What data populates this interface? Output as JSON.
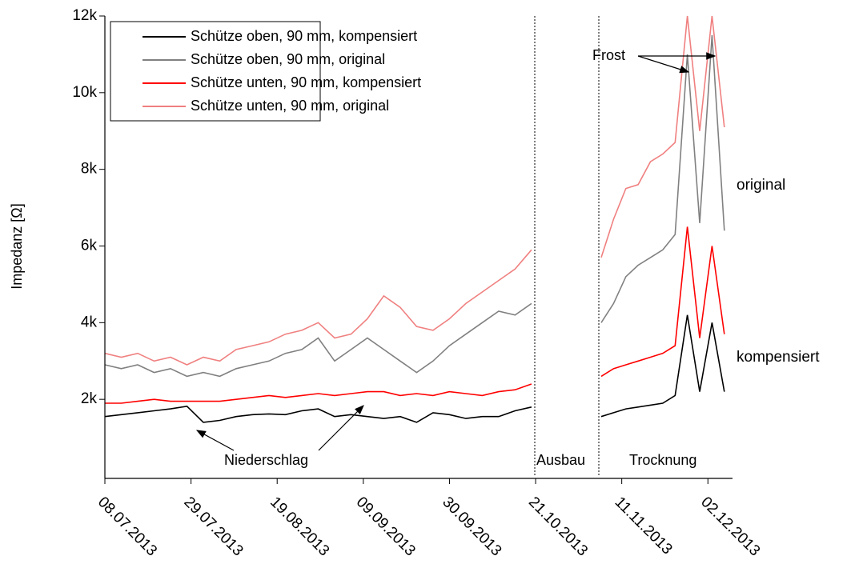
{
  "chart_data": {
    "type": "line",
    "y_label": "Impedanz [Ω]",
    "annotations": [
      "Niederschlag",
      "Ausbau",
      "Trocknung",
      "Frost",
      "original",
      "kompensiert"
    ],
    "x": [
      "2013-07-08",
      "2013-07-12",
      "2013-07-16",
      "2013-07-20",
      "2013-07-24",
      "2013-07-28",
      "2013-08-01",
      "2013-08-05",
      "2013-08-09",
      "2013-08-13",
      "2013-08-17",
      "2013-08-21",
      "2013-08-25",
      "2013-08-29",
      "2013-09-02",
      "2013-09-06",
      "2013-09-10",
      "2013-09-14",
      "2013-09-18",
      "2013-09-22",
      "2013-09-26",
      "2013-09-30",
      "2013-10-04",
      "2013-10-08",
      "2013-10-12",
      "2013-10-16",
      "2013-10-20",
      "2013-10-28",
      "2013-11-06",
      "2013-11-09",
      "2013-11-12",
      "2013-11-15",
      "2013-11-18",
      "2013-11-21",
      "2013-11-24",
      "2013-11-27",
      "2013-11-30",
      "2013-12-03",
      "2013-12-06"
    ],
    "series": [
      {
        "name": "Schütze oben, 90 mm, kompensiert",
        "color": "#000000",
        "values": [
          1550,
          1600,
          1650,
          1700,
          1750,
          1820,
          1400,
          1450,
          1550,
          1600,
          1620,
          1600,
          1700,
          1750,
          1550,
          1600,
          1550,
          1500,
          1550,
          1400,
          1650,
          1600,
          1500,
          1550,
          1550,
          1700,
          1800,
          null,
          1550,
          1650,
          1750,
          1800,
          1850,
          1900,
          2100,
          4200,
          2200,
          4000,
          2200
        ]
      },
      {
        "name": "Schütze oben, 90 mm, original",
        "color": "#808080",
        "values": [
          2900,
          2800,
          2900,
          2700,
          2800,
          2600,
          2700,
          2600,
          2800,
          2900,
          3000,
          3200,
          3300,
          3600,
          3000,
          3300,
          3600,
          3300,
          3000,
          2700,
          3000,
          3400,
          3700,
          4000,
          4300,
          4200,
          4500,
          null,
          4000,
          4500,
          5200,
          5500,
          5700,
          5900,
          6300,
          11000,
          6600,
          11500,
          6400
        ]
      },
      {
        "name": "Schütze unten, 90 mm, kompensiert",
        "color": "#ff0000",
        "values": [
          1900,
          1900,
          1950,
          2000,
          1950,
          1950,
          1950,
          1950,
          2000,
          2050,
          2100,
          2050,
          2100,
          2150,
          2100,
          2150,
          2200,
          2200,
          2100,
          2150,
          2100,
          2200,
          2150,
          2100,
          2200,
          2250,
          2400,
          null,
          2600,
          2800,
          2900,
          3000,
          3100,
          3200,
          3400,
          6500,
          3600,
          6000,
          3700
        ]
      },
      {
        "name": "Schütze unten, 90 mm, original",
        "color": "#f08080",
        "values": [
          3200,
          3100,
          3200,
          3000,
          3100,
          2900,
          3100,
          3000,
          3300,
          3400,
          3500,
          3700,
          3800,
          4000,
          3600,
          3700,
          4100,
          4700,
          4400,
          3900,
          3800,
          4100,
          4500,
          4800,
          5100,
          5400,
          5900,
          null,
          5700,
          6700,
          7500,
          7600,
          8200,
          8400,
          8700,
          12000,
          9000,
          12000,
          9100
        ]
      }
    ],
    "xlim": [
      "2013-07-08",
      "2013-12-08"
    ],
    "xticks": [
      {
        "value": "2013-07-08",
        "label": "08.07.2013"
      },
      {
        "value": "2013-07-29",
        "label": "29.07.2013"
      },
      {
        "value": "2013-08-19",
        "label": "19.08.2013"
      },
      {
        "value": "2013-09-09",
        "label": "09.09.2013"
      },
      {
        "value": "2013-09-30",
        "label": "30.09.2013"
      },
      {
        "value": "2013-10-21",
        "label": "21.10.2013"
      },
      {
        "value": "2013-11-11",
        "label": "11.11.2013"
      },
      {
        "value": "2013-12-02",
        "label": "02.12.2013"
      }
    ],
    "ylim": [
      0,
      12000
    ],
    "yticks": [
      {
        "value": 2000,
        "label": "2k"
      },
      {
        "value": 4000,
        "label": "4k"
      },
      {
        "value": 6000,
        "label": "6k"
      },
      {
        "value": 8000,
        "label": "8k"
      },
      {
        "value": 10000,
        "label": "10k"
      },
      {
        "value": 12000,
        "label": "12k"
      }
    ],
    "legend": "upper left"
  }
}
